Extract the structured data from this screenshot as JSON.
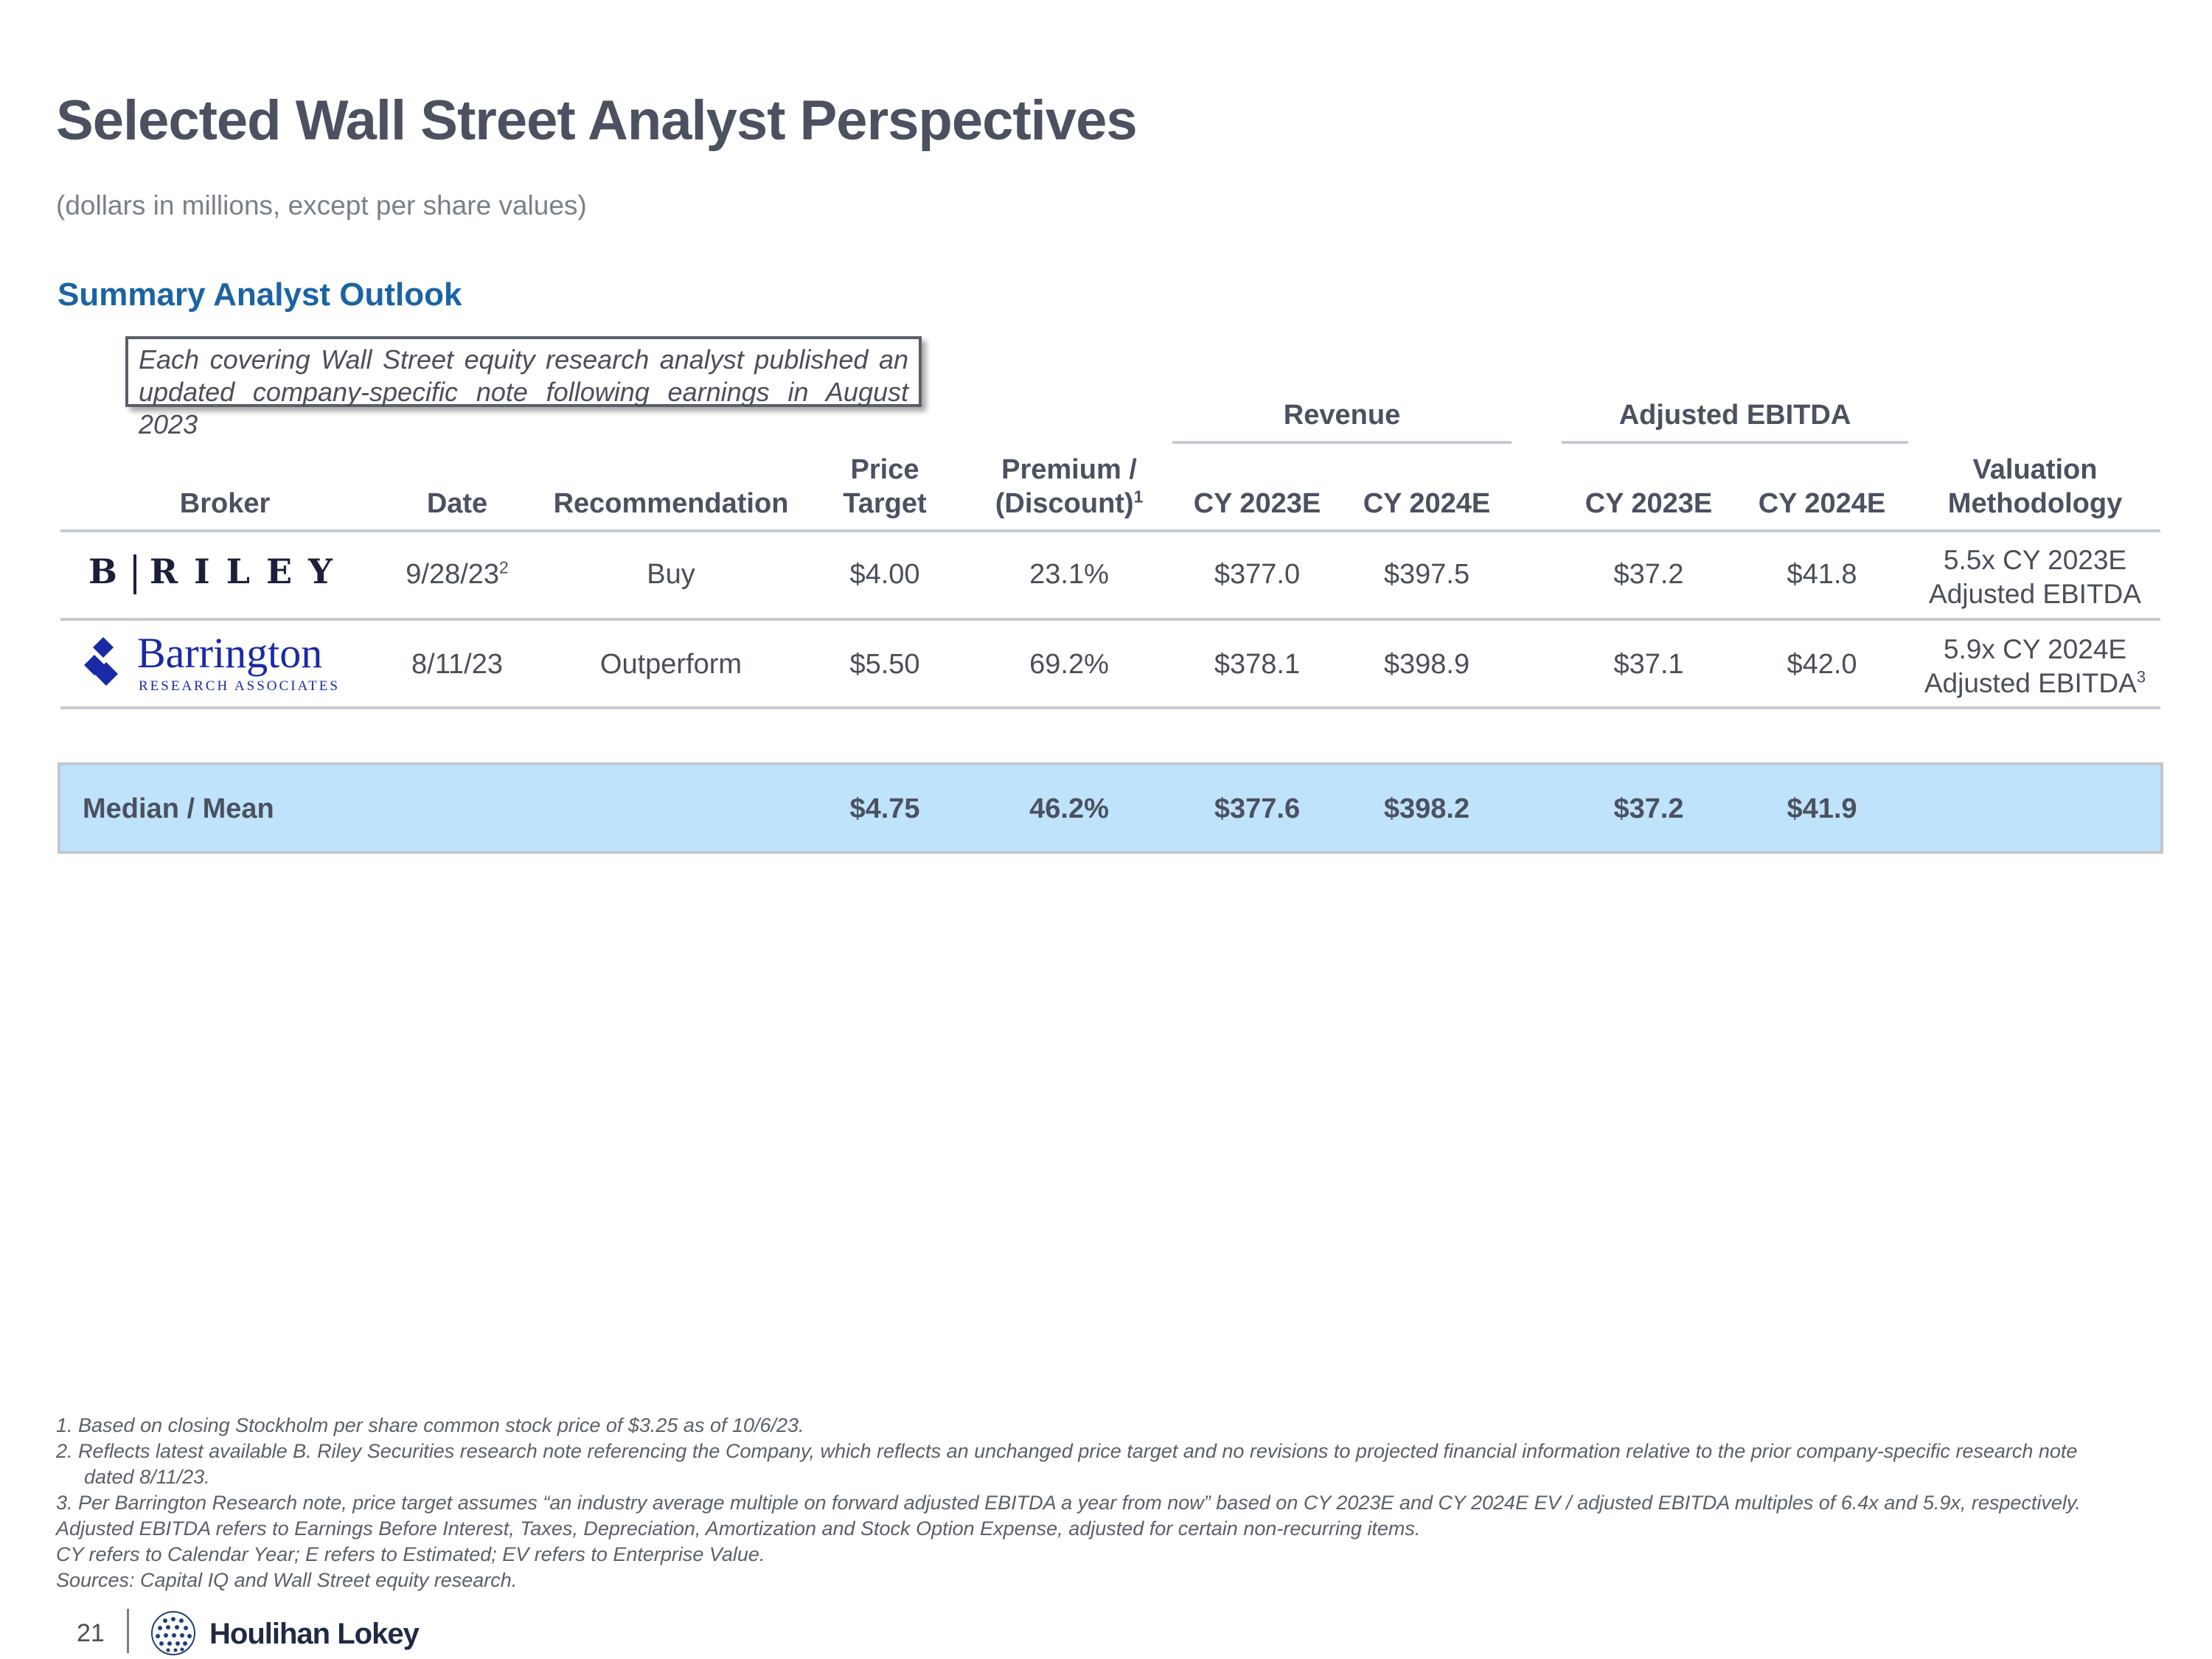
{
  "title": "Selected Wall Street Analyst Perspectives",
  "subtitle": "(dollars in millions, except per share values)",
  "section_title": "Summary Analyst Outlook",
  "callout": "Each covering Wall Street equity research analyst published an updated company-specific note following earnings in August 2023",
  "group_headers": {
    "revenue": "Revenue",
    "ebitda": "Adjusted EBITDA"
  },
  "columns": {
    "broker": "Broker",
    "date": "Date",
    "recommendation": "Recommendation",
    "price_target_1": "Price",
    "price_target_2": "Target",
    "premium_1": "Premium /",
    "premium_2": "(Discount)",
    "premium_sup": "1",
    "rev_2023": "CY 2023E",
    "rev_2024": "CY 2024E",
    "ebitda_2023": "CY 2023E",
    "ebitda_2024": "CY 2024E",
    "valuation_1": "Valuation",
    "valuation_2": "Methodology"
  },
  "rows": [
    {
      "broker_logo": "B RILEY",
      "date": "9/28/23",
      "date_sup": "2",
      "recommendation": "Buy",
      "price_target": "$4.00",
      "premium": "23.1%",
      "rev_2023": "$377.0",
      "rev_2024": "$397.5",
      "ebitda_2023": "$37.2",
      "ebitda_2024": "$41.8",
      "valuation_1": "5.5x CY 2023E",
      "valuation_2": "Adjusted EBITDA",
      "valuation_sup": ""
    },
    {
      "broker_logo": "Barrington",
      "broker_logo_sub": "RESEARCH ASSOCIATES",
      "date": "8/11/23",
      "date_sup": "",
      "recommendation": "Outperform",
      "price_target": "$5.50",
      "premium": "69.2%",
      "rev_2023": "$378.1",
      "rev_2024": "$398.9",
      "ebitda_2023": "$37.1",
      "ebitda_2024": "$42.0",
      "valuation_1": "5.9x CY 2024E",
      "valuation_2": "Adjusted EBITDA",
      "valuation_sup": "3"
    }
  ],
  "summary": {
    "label": "Median / Mean",
    "price_target": "$4.75",
    "premium": "46.2%",
    "rev_2023": "$377.6",
    "rev_2024": "$398.2",
    "ebitda_2023": "$37.2",
    "ebitda_2024": "$41.9"
  },
  "footnotes": [
    "1.  Based on closing Stockholm per share common stock price of $3.25 as of 10/6/23.",
    "2.  Reflects latest available B. Riley Securities research note referencing the Company, which reflects an unchanged price target and no revisions to projected financial information relative to the prior company-specific research note",
    "dated 8/11/23.",
    "3.  Per Barrington Research note, price target assumes “an industry average multiple on forward adjusted EBITDA a year from now” based on CY 2023E and CY 2024E EV / adjusted EBITDA multiples of 6.4x and 5.9x, respectively.",
    "Adjusted EBITDA refers to Earnings Before Interest, Taxes, Depreciation, Amortization and Stock Option Expense, adjusted for certain non-recurring items.",
    "CY refers to Calendar Year; E refers to Estimated; EV refers to Enterprise Value.",
    "Sources: Capital IQ and Wall Street equity research."
  ],
  "footer": {
    "page_number": "21",
    "company": "Houlihan Lokey"
  },
  "colors": {
    "title": "#4b5160",
    "section": "#1a64a3",
    "band": "#bfe3fb",
    "rule": "#c6cad2"
  }
}
